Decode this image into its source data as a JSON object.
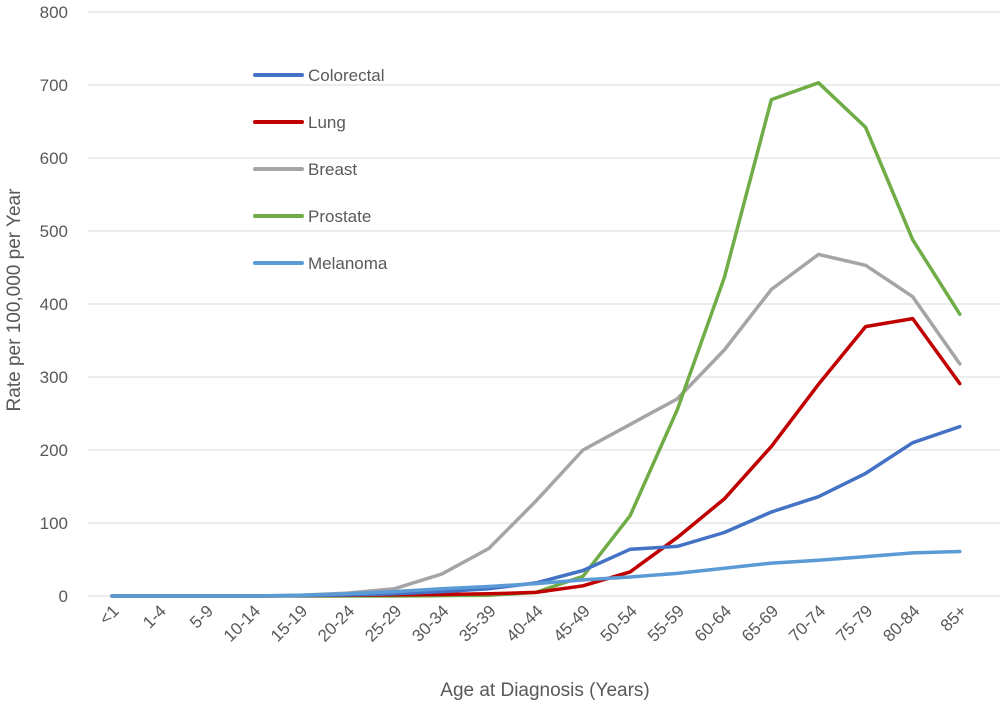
{
  "chart_data": {
    "type": "line",
    "title": "",
    "xlabel": "Age at Diagnosis (Years)",
    "ylabel": "Rate per 100,000 per Year",
    "ylim": [
      0,
      800
    ],
    "yticks": [
      0,
      100,
      200,
      300,
      400,
      500,
      600,
      700,
      800
    ],
    "grid": "horizontal",
    "legend": "upper-left",
    "categories": [
      "<1",
      "1-4",
      "5-9",
      "10-14",
      "15-19",
      "20-24",
      "25-29",
      "30-34",
      "35-39",
      "40-44",
      "45-49",
      "50-54",
      "55-59",
      "60-64",
      "65-69",
      "70-74",
      "75-79",
      "80-84",
      "85+"
    ],
    "series": [
      {
        "name": "Colorectal",
        "color": "#4472c4",
        "values": [
          0,
          0,
          0,
          0,
          0.5,
          1.5,
          3,
          6,
          10,
          18,
          35,
          64,
          68,
          87,
          115,
          136,
          168,
          210,
          232
        ]
      },
      {
        "name": "Lung",
        "color": "#c00000",
        "values": [
          0,
          0,
          0,
          0,
          0.5,
          1,
          1.5,
          2,
          3,
          5,
          14,
          33,
          80,
          133,
          205,
          290,
          369,
          380,
          291
        ]
      },
      {
        "name": "Breast",
        "color": "#a5a5a5",
        "values": [
          0,
          0,
          0,
          0,
          1,
          4,
          10,
          30,
          65,
          130,
          200,
          235,
          270,
          337,
          420,
          468,
          453,
          410,
          318
        ]
      },
      {
        "name": "Prostate",
        "color": "#70ad47",
        "values": [
          0,
          0,
          0,
          0,
          0,
          0,
          0,
          0.5,
          1,
          5,
          27,
          110,
          255,
          436,
          680,
          703,
          642,
          488,
          386
        ]
      },
      {
        "name": "Melanoma",
        "color": "#5b9bd5",
        "values": [
          0,
          0,
          0,
          0,
          1,
          3,
          6,
          10,
          13,
          17,
          22,
          26,
          31,
          38,
          45,
          49,
          54,
          59,
          61
        ]
      }
    ]
  }
}
